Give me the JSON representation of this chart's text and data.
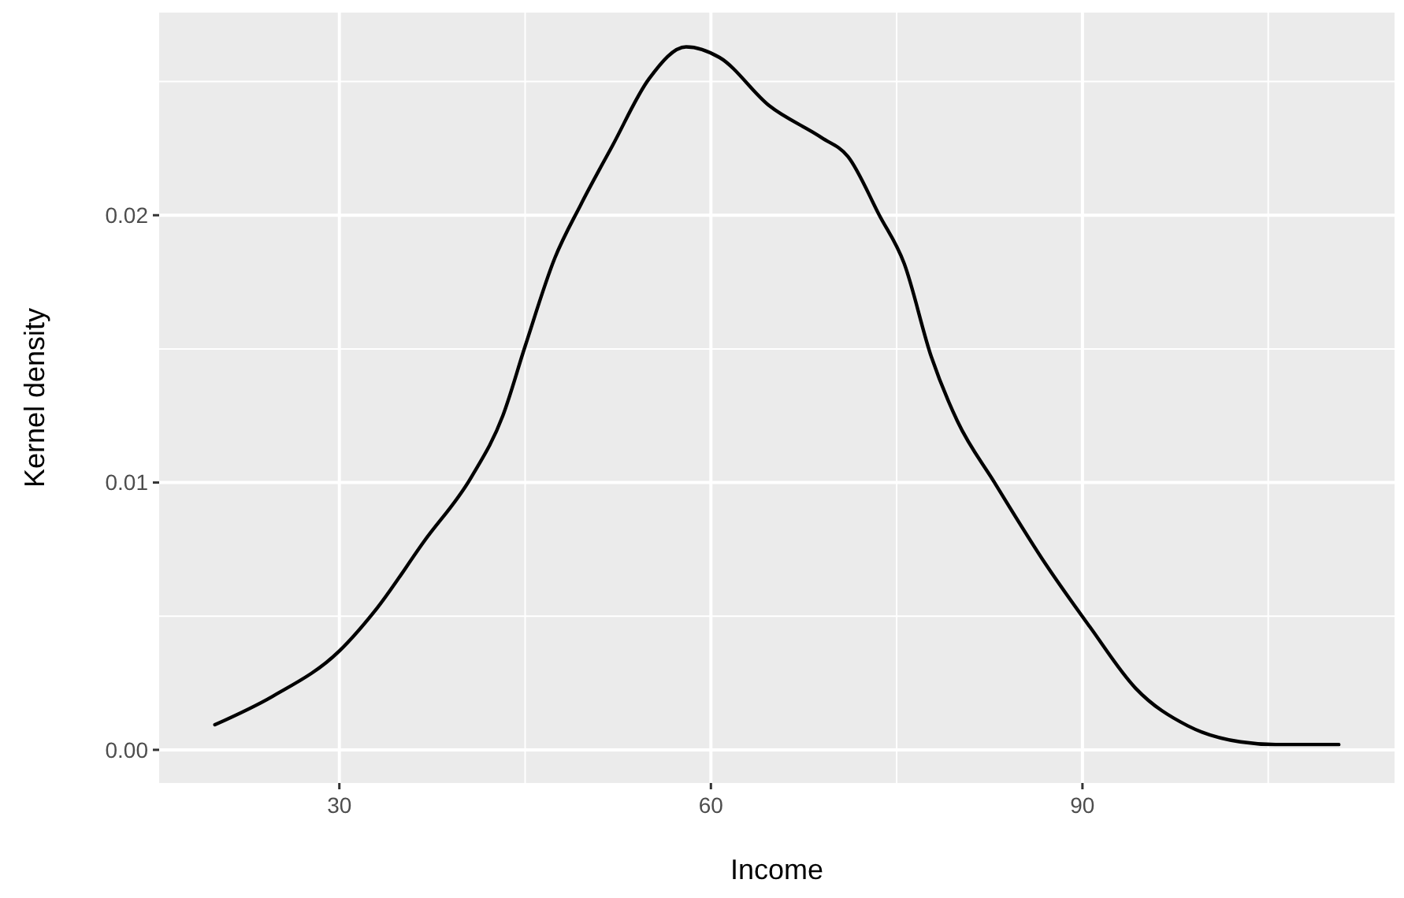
{
  "chart_data": {
    "type": "line",
    "xlabel": "Income",
    "ylabel": "Kernel density",
    "x": [
      19.95,
      24.6,
      30,
      33.04,
      36.84,
      40.65,
      43.2,
      45,
      47.4,
      49.5,
      52.05,
      55,
      58,
      60.7,
      64.7,
      68.95,
      71.06,
      73.6,
      75.6,
      77.8,
      79.9,
      82.9,
      87.1,
      90.6,
      94.3,
      98.5,
      102.75,
      105.6,
      110.7
    ],
    "series": [
      {
        "color": "#000000",
        "values": [
          0.00094,
          0.002,
          0.0037,
          0.0053,
          0.0078,
          0.0102,
          0.0125,
          0.0151,
          0.0184,
          0.0204,
          0.0226,
          0.0251,
          0.0263,
          0.0259,
          0.0241,
          0.0229,
          0.0222,
          0.02,
          0.0182,
          0.0147,
          0.0123,
          0.01,
          0.0069,
          0.0046,
          0.0023,
          0.0009,
          0.0003,
          0.0002,
          0.0002
        ]
      }
    ],
    "xlim": [
      15.45,
      115.2
    ],
    "xticks": [
      30,
      60,
      90
    ],
    "ylim": [
      -0.00124,
      0.02758
    ],
    "yticks": [
      {
        "value": 0,
        "label": "0.00"
      },
      {
        "value": 0.01,
        "label": "0.01"
      },
      {
        "value": 0.02,
        "label": "0.02"
      }
    ],
    "grid": true,
    "marker": "none",
    "line_style": "solid"
  }
}
